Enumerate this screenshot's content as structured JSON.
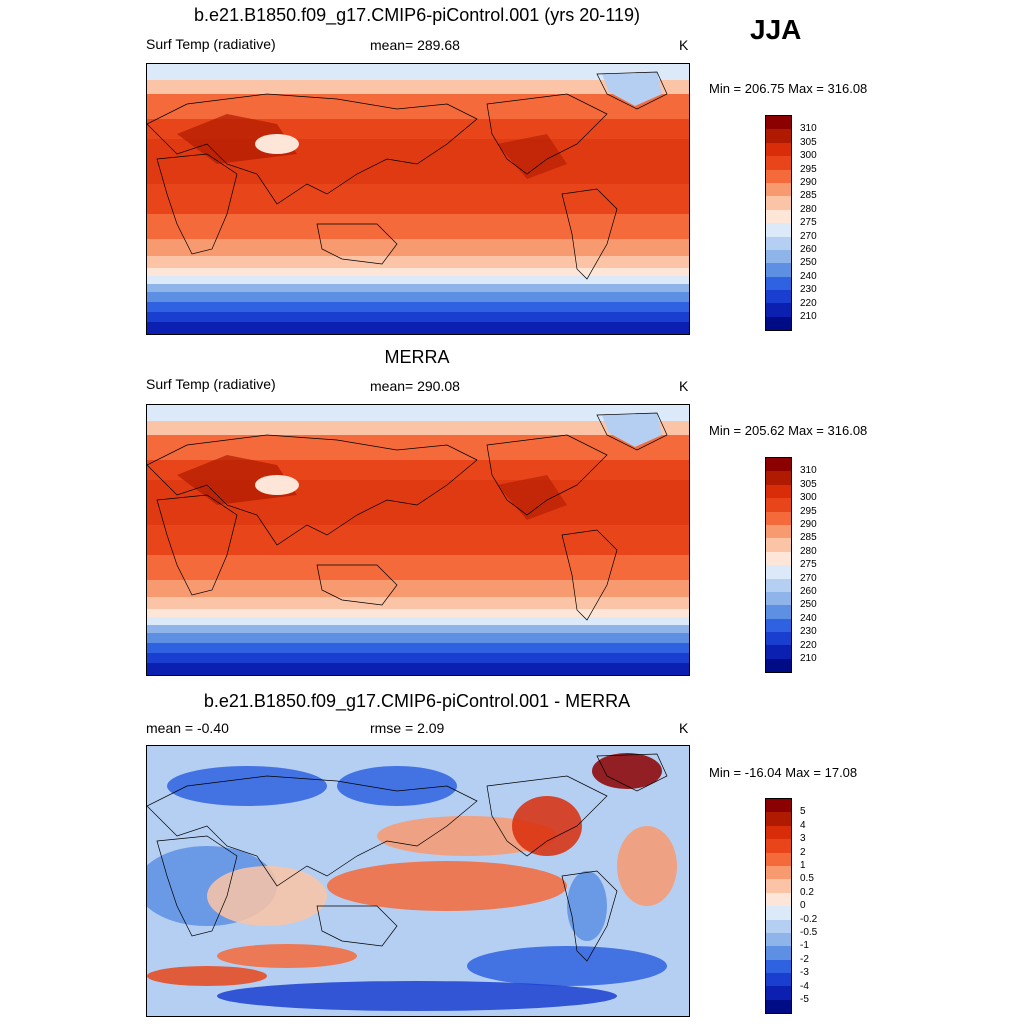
{
  "season": "JJA",
  "panels": [
    {
      "id": "model",
      "title": "b.e21.B1850.f09_g17.CMIP6-piControl.001 (yrs 20-119)",
      "left_label": "Surf Temp (radiative)",
      "center_label": "mean= 289.68",
      "units": "K",
      "minmax": "Min = 206.75 Max = 316.08",
      "colorbar": {
        "colors": [
          "#8b0000",
          "#b01a00",
          "#d92d0a",
          "#e8461a",
          "#f46a3a",
          "#f89a70",
          "#fbc4a6",
          "#fde6d8",
          "#dbe9f8",
          "#b5cff2",
          "#8fb4ea",
          "#5d8fe3",
          "#2f62e0",
          "#1a3fd0",
          "#0b20b0",
          "#000c85"
        ],
        "labels": [
          "310",
          "305",
          "300",
          "295",
          "290",
          "285",
          "280",
          "275",
          "270",
          "260",
          "250",
          "240",
          "230",
          "220",
          "210"
        ]
      }
    },
    {
      "id": "obs",
      "title": "MERRA",
      "left_label": "Surf Temp (radiative)",
      "center_label": "mean= 290.08",
      "units": "K",
      "minmax": "Min = 205.62 Max = 316.08",
      "colorbar": {
        "colors": [
          "#8b0000",
          "#b01a00",
          "#d92d0a",
          "#e8461a",
          "#f46a3a",
          "#f89a70",
          "#fbc4a6",
          "#fde6d8",
          "#dbe9f8",
          "#b5cff2",
          "#8fb4ea",
          "#5d8fe3",
          "#2f62e0",
          "#1a3fd0",
          "#0b20b0",
          "#000c85"
        ],
        "labels": [
          "310",
          "305",
          "300",
          "295",
          "290",
          "285",
          "280",
          "275",
          "270",
          "260",
          "250",
          "240",
          "230",
          "220",
          "210"
        ]
      }
    },
    {
      "id": "diff",
      "title": "b.e21.B1850.f09_g17.CMIP6-piControl.001 - MERRA",
      "left_label": "mean =  -0.40",
      "center_label": "rmse =   2.09",
      "units": "K",
      "minmax": "Min = -16.04 Max =  17.08",
      "colorbar": {
        "colors": [
          "#8b0000",
          "#b01a00",
          "#d92d0a",
          "#e8461a",
          "#f46a3a",
          "#f89a70",
          "#fbc4a6",
          "#fde6d8",
          "#dbe9f8",
          "#b5cff2",
          "#8fb4ea",
          "#5d8fe3",
          "#2f62e0",
          "#1a3fd0",
          "#0b20b0",
          "#000c85"
        ],
        "labels": [
          "5",
          "4",
          "3",
          "2",
          "1",
          "0.5",
          "0.2",
          "0",
          "-0.2",
          "-0.5",
          "-1",
          "-2",
          "-3",
          "-4",
          "-5"
        ]
      }
    }
  ]
}
